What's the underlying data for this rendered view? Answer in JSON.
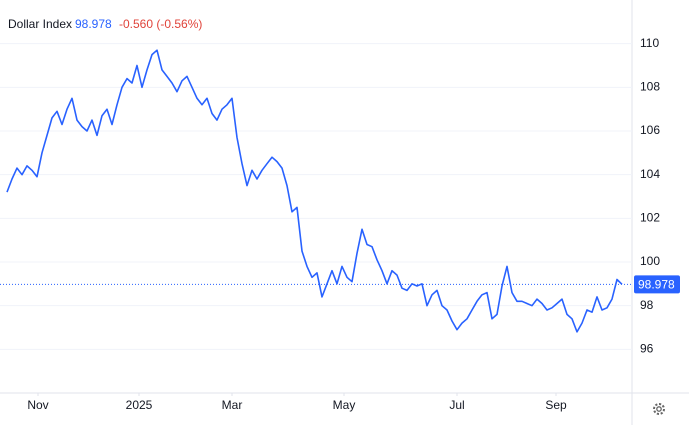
{
  "chart_data": {
    "type": "line",
    "title": "Dollar Index",
    "last_value": 98.978,
    "change": "-0.560 (-0.56%)",
    "color": "#2962ff",
    "ylim": [
      94,
      112
    ],
    "yticks": [
      96,
      98,
      100,
      102,
      104,
      106,
      108,
      110
    ],
    "xticks": [
      {
        "value": 6.2,
        "label": "Nov"
      },
      {
        "value": 26.4,
        "label": "2025"
      },
      {
        "value": 45,
        "label": "Mar"
      },
      {
        "value": 67.4,
        "label": "May"
      },
      {
        "value": 90,
        "label": "Jul"
      },
      {
        "value": 109.8,
        "label": "Sep"
      }
    ],
    "values": [
      103.2,
      103.8,
      104.3,
      104.0,
      104.4,
      104.2,
      103.9,
      105.0,
      105.8,
      106.6,
      106.9,
      106.3,
      107.0,
      107.5,
      106.5,
      106.2,
      106.0,
      106.5,
      105.8,
      106.7,
      107.0,
      106.3,
      107.2,
      108.0,
      108.4,
      108.2,
      109.0,
      108.0,
      108.8,
      109.5,
      109.7,
      108.8,
      108.5,
      108.2,
      107.8,
      108.3,
      108.5,
      108.0,
      107.5,
      107.2,
      107.5,
      106.8,
      106.5,
      107.0,
      107.2,
      107.5,
      105.7,
      104.5,
      103.5,
      104.2,
      103.8,
      104.2,
      104.5,
      104.8,
      104.6,
      104.3,
      103.5,
      102.3,
      102.5,
      100.5,
      99.8,
      99.3,
      99.5,
      98.4,
      99.0,
      99.6,
      99.0,
      99.8,
      99.3,
      99.1,
      100.4,
      101.5,
      100.8,
      100.7,
      100.1,
      99.6,
      99.0,
      99.6,
      99.4,
      98.8,
      98.7,
      99.0,
      98.9,
      99.0,
      98.0,
      98.5,
      98.7,
      98.0,
      97.8,
      97.3,
      96.9,
      97.2,
      97.4,
      97.8,
      98.2,
      98.5,
      98.6,
      97.4,
      97.6,
      98.9,
      99.8,
      98.6,
      98.2,
      98.2,
      98.1,
      98.0,
      98.3,
      98.1,
      97.8,
      97.9,
      98.1,
      98.3,
      97.6,
      97.4,
      96.8,
      97.2,
      97.8,
      97.7,
      98.4,
      97.8,
      97.9,
      98.3,
      99.2,
      98.978
    ]
  }
}
